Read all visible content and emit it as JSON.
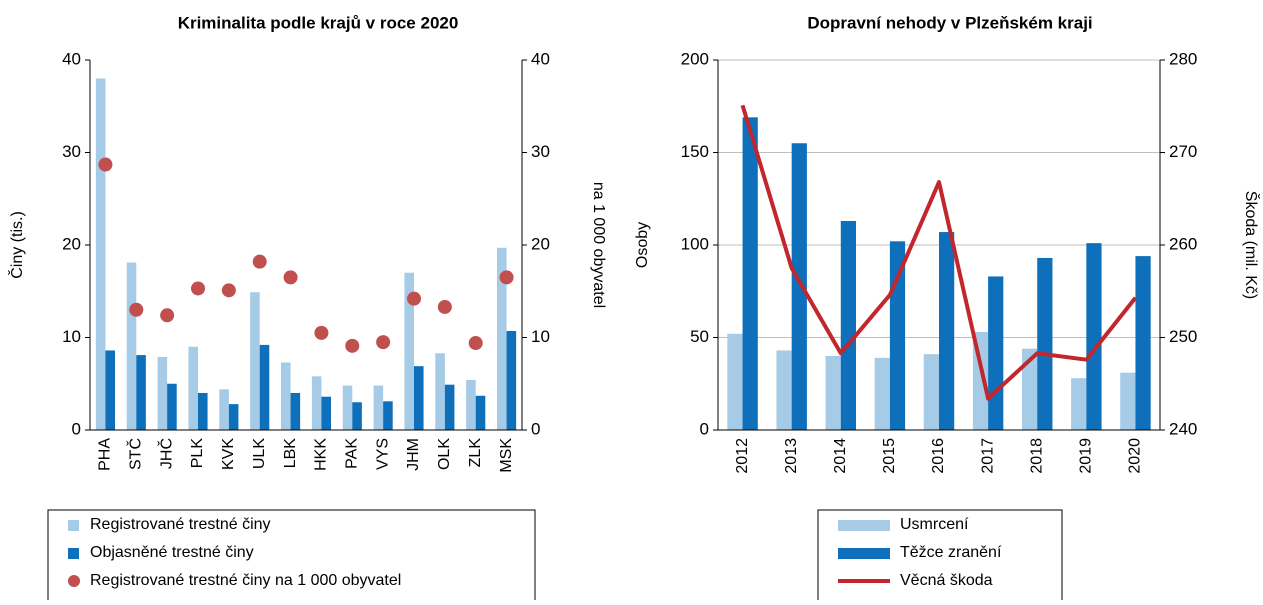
{
  "chart_data": [
    {
      "type": "bar",
      "title": "Kriminalita podle krajů v roce 2020",
      "categories": [
        "PHA",
        "STČ",
        "JHČ",
        "PLK",
        "KVK",
        "ULK",
        "LBK",
        "HKK",
        "PAK",
        "VYS",
        "JHM",
        "OLK",
        "ZLK",
        "MSK"
      ],
      "ylabel": "Činy (tis.)",
      "y2label": "na 1 000 obyvatel",
      "ylim": [
        0,
        40
      ],
      "yticks": [
        0,
        10,
        20,
        30,
        40
      ],
      "y2lim": [
        0,
        40
      ],
      "y2ticks": [
        0,
        10,
        20,
        30,
        40
      ],
      "grid": false,
      "legend": "bottom",
      "series": [
        {
          "name": "Registrované trestné činy",
          "type": "bar",
          "color": "#a6cbe6",
          "values": [
            38.0,
            18.1,
            7.9,
            9.0,
            4.4,
            14.9,
            7.3,
            5.8,
            4.8,
            4.8,
            17.0,
            8.3,
            5.4,
            19.7
          ]
        },
        {
          "name": "Objasněné trestné činy",
          "type": "bar",
          "color": "#0e6fba",
          "values": [
            8.6,
            8.1,
            5.0,
            4.0,
            2.8,
            9.2,
            4.0,
            3.6,
            3.0,
            3.1,
            6.9,
            4.9,
            3.7,
            10.7
          ]
        },
        {
          "name": "Registrované trestné činy na 1 000 obyvatel",
          "type": "scatter",
          "axis": "y2",
          "color": "#c0504d",
          "values": [
            28.7,
            13.0,
            12.4,
            15.3,
            15.1,
            18.2,
            16.5,
            10.5,
            9.1,
            9.5,
            14.2,
            13.3,
            9.4,
            16.5
          ]
        }
      ]
    },
    {
      "type": "bar",
      "title": "Dopravní nehody v Plzeňském kraji",
      "categories": [
        "2012",
        "2013",
        "2014",
        "2015",
        "2016",
        "2017",
        "2018",
        "2019",
        "2020"
      ],
      "ylabel": "Osoby",
      "y2label": "Škoda (mil. Kč)",
      "ylim": [
        0,
        200
      ],
      "yticks": [
        0,
        50,
        100,
        150,
        200
      ],
      "y2lim": [
        240,
        280
      ],
      "y2ticks": [
        240,
        250,
        260,
        270,
        280
      ],
      "grid": true,
      "legend": "bottom",
      "series": [
        {
          "name": "Usmrcení",
          "type": "bar",
          "color": "#a6cbe6",
          "values": [
            52,
            43,
            40,
            39,
            41,
            53,
            44,
            28,
            31
          ]
        },
        {
          "name": "Těžce zranění",
          "type": "bar",
          "color": "#0e6fba",
          "values": [
            169,
            155,
            113,
            102,
            107,
            83,
            93,
            101,
            94
          ]
        },
        {
          "name": "Věcná škoda",
          "type": "line",
          "axis": "y2",
          "color": "#c1272d",
          "values": [
            275.1,
            257.5,
            248.3,
            254.6,
            266.8,
            243.4,
            248.3,
            247.6,
            254.3
          ]
        }
      ]
    }
  ]
}
